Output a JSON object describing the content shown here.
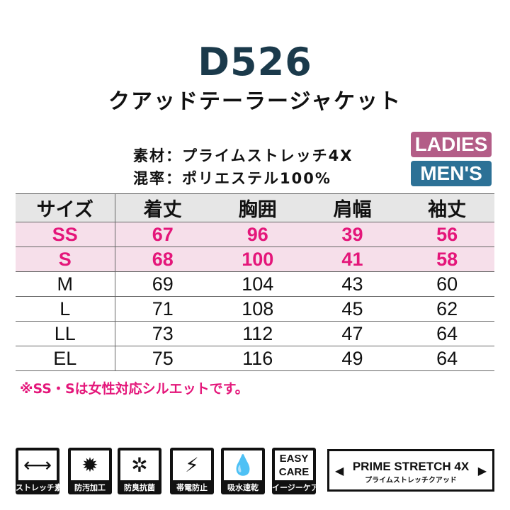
{
  "product": {
    "code": "D526",
    "name": "クアッドテーラージャケット"
  },
  "specs": {
    "material": "素材：プライムストレッチ4X",
    "blend": "混率：ポリエステル100%"
  },
  "badges": {
    "ladies": "LADIES",
    "mens": "MEN'S",
    "ladies_color": "#b35d87",
    "mens_color": "#2c7196"
  },
  "table": {
    "headers": [
      "サイズ",
      "着丈",
      "胸囲",
      "肩幅",
      "袖丈"
    ],
    "rows": [
      {
        "cells": [
          "SS",
          "67",
          "96",
          "39",
          "56"
        ],
        "ladies": true
      },
      {
        "cells": [
          "S",
          "68",
          "100",
          "41",
          "58"
        ],
        "ladies": true
      },
      {
        "cells": [
          "M",
          "69",
          "104",
          "43",
          "60"
        ]
      },
      {
        "cells": [
          "L",
          "71",
          "108",
          "45",
          "62"
        ]
      },
      {
        "cells": [
          "LL",
          "73",
          "112",
          "47",
          "64"
        ]
      },
      {
        "cells": [
          "EL",
          "75",
          "116",
          "49",
          "64"
        ]
      }
    ]
  },
  "note": "※SS・Sは女性対応シルエットです。",
  "features": [
    {
      "icon": "stretch-arrows-icon",
      "glyph": "⟷",
      "label": "ストレッチ素材"
    },
    {
      "icon": "stain-resistant-icon",
      "glyph": "✹",
      "label": "防汚加工"
    },
    {
      "icon": "antibacterial-icon",
      "glyph": "✲",
      "label": "防臭抗菌"
    },
    {
      "icon": "antistatic-icon",
      "glyph": "⚡",
      "label": "帯電防止"
    },
    {
      "icon": "water-drop-icon",
      "glyph": "💧",
      "label": "吸水速乾"
    },
    {
      "icon": "easy-care-icon",
      "glyph": "EASY CARE",
      "label": "イージーケア"
    }
  ],
  "banner": {
    "title": "PRIME STRETCH 4X",
    "subtitle": "プライムストレッチクアッド"
  }
}
